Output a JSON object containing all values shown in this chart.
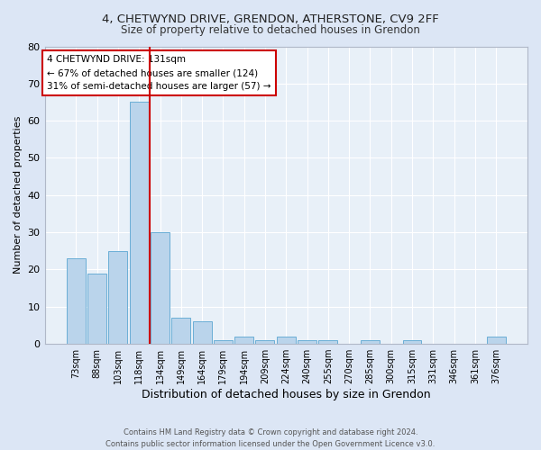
{
  "title1": "4, CHETWYND DRIVE, GRENDON, ATHERSTONE, CV9 2FF",
  "title2": "Size of property relative to detached houses in Grendon",
  "xlabel": "Distribution of detached houses by size in Grendon",
  "ylabel": "Number of detached properties",
  "footer1": "Contains HM Land Registry data © Crown copyright and database right 2024.",
  "footer2": "Contains public sector information licensed under the Open Government Licence v3.0.",
  "annotation_line1": "4 CHETWYND DRIVE: 131sqm",
  "annotation_line2": "← 67% of detached houses are smaller (124)",
  "annotation_line3": "31% of semi-detached houses are larger (57) →",
  "bar_labels": [
    "73sqm",
    "88sqm",
    "103sqm",
    "118sqm",
    "134sqm",
    "149sqm",
    "164sqm",
    "179sqm",
    "194sqm",
    "209sqm",
    "224sqm",
    "240sqm",
    "255sqm",
    "270sqm",
    "285sqm",
    "300sqm",
    "315sqm",
    "331sqm",
    "346sqm",
    "361sqm",
    "376sqm"
  ],
  "bar_values": [
    23,
    19,
    25,
    65,
    30,
    7,
    6,
    1,
    2,
    1,
    2,
    1,
    1,
    0,
    1,
    0,
    1,
    0,
    0,
    0,
    2
  ],
  "bar_color": "#bad4eb",
  "bar_edge_color": "#6aaed6",
  "highlight_color": "#cc0000",
  "highlight_bar_index": 4,
  "ylim": [
    0,
    80
  ],
  "yticks": [
    0,
    10,
    20,
    30,
    40,
    50,
    60,
    70,
    80
  ],
  "bg_color": "#dce6f5",
  "plot_bg_color": "#e8f0f8",
  "grid_color": "#ffffff",
  "annotation_box_color": "#cc0000"
}
